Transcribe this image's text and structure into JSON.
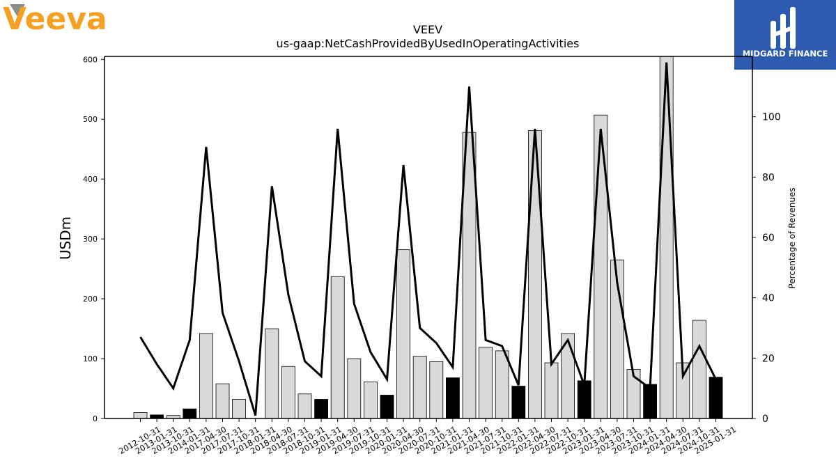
{
  "brand": {
    "left_logo_text": "Veeva",
    "left_logo_color": "#F4A023",
    "right_logo_text": "MIDGARD FINANCE",
    "right_logo_bg": "#2C5BAF"
  },
  "chart_data": {
    "type": "bar",
    "title": "VEEV",
    "subtitle": "us-gaap:NetCashProvidedByUsedInOperatingActivities",
    "ylabel": "USDm",
    "y2label": "Percentage of Revenues",
    "ylim": [
      0,
      605
    ],
    "y2lim": [
      0,
      120
    ],
    "yticks": [
      0,
      100,
      200,
      300,
      400,
      500,
      600
    ],
    "y2ticks": [
      0,
      20,
      40,
      60,
      80,
      100
    ],
    "categories": [
      "2012-10-31",
      "2013-01-31",
      "2013-10-31",
      "2014-01-31",
      "2017-04-30",
      "2017-07-31",
      "2017-10-31",
      "2018-01-31",
      "2018-04-30",
      "2018-07-31",
      "2018-10-31",
      "2019-01-31",
      "2019-04-30",
      "2019-07-31",
      "2019-10-31",
      "2020-01-31",
      "2020-04-30",
      "2020-07-31",
      "2020-10-31",
      "2021-01-31",
      "2021-04-30",
      "2021-07-31",
      "2021-10-31",
      "2022-01-31",
      "2022-04-30",
      "2022-07-31",
      "2022-10-31",
      "2023-01-31",
      "2023-04-30",
      "2023-07-31",
      "2023-10-31",
      "2024-01-31",
      "2024-04-30",
      "2024-07-31",
      "2024-10-31",
      "2025-01-31"
    ],
    "series": [
      {
        "type": "bar",
        "axis": "left",
        "values": [
          10,
          6,
          5,
          16,
          142,
          58,
          32,
          0,
          150,
          87,
          41,
          32,
          237,
          100,
          61,
          39,
          282,
          104,
          95,
          68,
          478,
          119,
          113,
          54,
          481,
          93,
          142,
          63,
          507,
          265,
          82,
          57,
          610,
          93,
          164,
          69
        ],
        "highlight": [
          false,
          true,
          false,
          true,
          false,
          false,
          false,
          true,
          false,
          false,
          false,
          true,
          false,
          false,
          false,
          true,
          false,
          false,
          false,
          true,
          false,
          false,
          false,
          true,
          false,
          false,
          false,
          true,
          false,
          false,
          false,
          true,
          false,
          false,
          false,
          true
        ],
        "fill_color": "#d9d9d9",
        "highlight_color": "#000000"
      },
      {
        "type": "line",
        "axis": "right",
        "values": [
          27,
          18,
          10,
          26,
          90,
          35,
          19,
          1,
          77,
          41,
          19,
          14,
          96,
          38,
          22,
          13,
          84,
          30,
          25,
          17,
          110,
          26,
          24,
          11,
          96,
          18,
          26,
          11,
          96,
          45,
          14,
          10,
          118,
          14,
          24,
          13
        ],
        "color": "#000000"
      }
    ]
  }
}
